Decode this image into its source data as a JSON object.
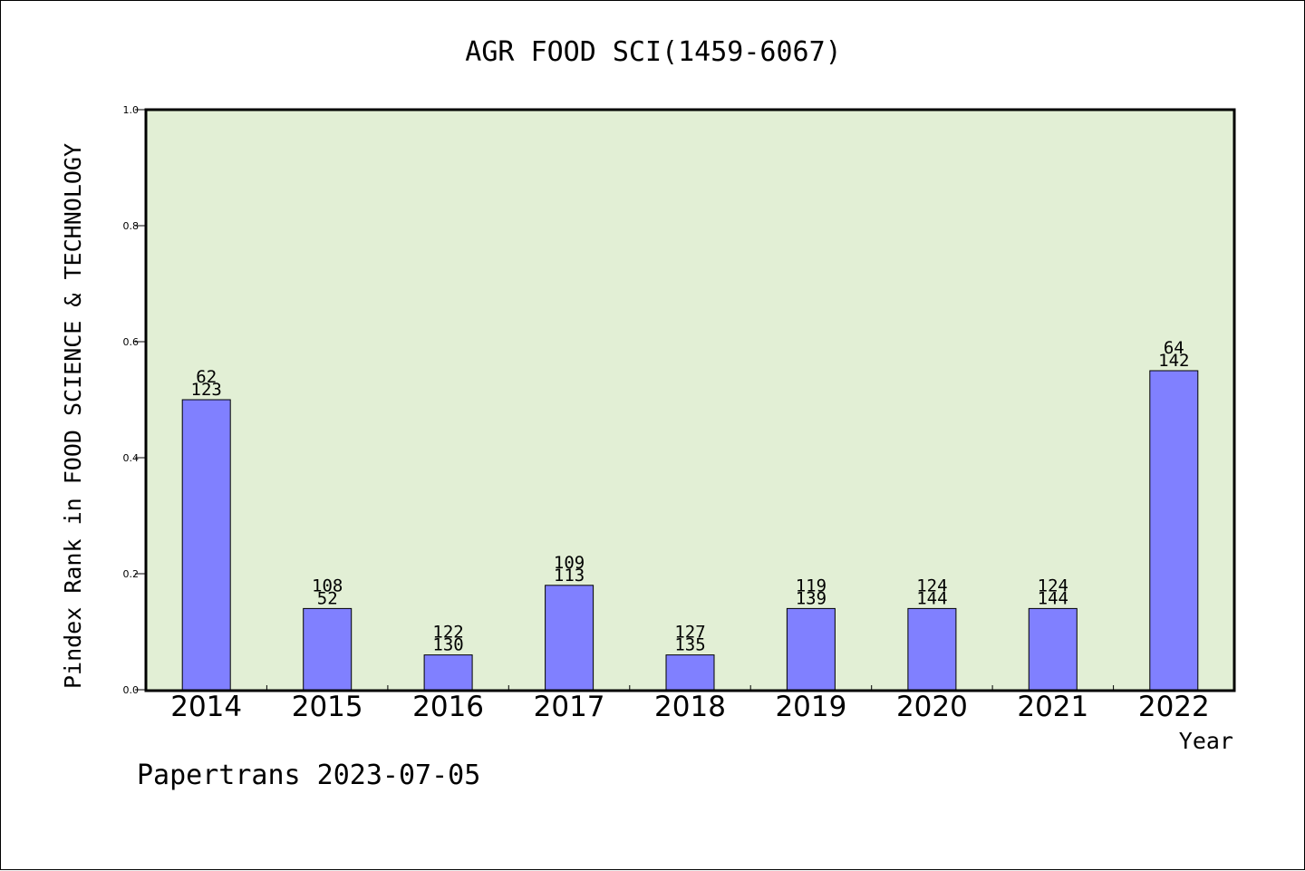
{
  "chart_data": {
    "type": "bar",
    "title": "AGR FOOD SCI(1459-6067)",
    "xlabel": "Year",
    "ylabel": "Pindex Rank in FOOD SCIENCE & TECHNOLOGY",
    "categories": [
      "2014",
      "2015",
      "2016",
      "2017",
      "2018",
      "2019",
      "2020",
      "2021",
      "2022"
    ],
    "values": [
      0.5,
      0.14,
      0.06,
      0.18,
      0.06,
      0.14,
      0.14,
      0.14,
      0.55
    ],
    "annotations_top": [
      "62",
      "108",
      "122",
      "109",
      "127",
      "119",
      "124",
      "124",
      "64"
    ],
    "annotations_bottom": [
      "123",
      "52",
      "130",
      "113",
      "135",
      "139",
      "144",
      "144",
      "142"
    ],
    "ylim": [
      0,
      1.0
    ],
    "yticks": [
      "0.0",
      "0.2",
      "0.4",
      "0.6",
      "0.8",
      "1.0"
    ],
    "grid": false,
    "colors": {
      "plot_background": "#e2efd5",
      "bar_fill": "#8080ff",
      "bar_stroke": "#000000"
    }
  },
  "footer": {
    "watermark": "Papertrans 2023-07-05"
  }
}
